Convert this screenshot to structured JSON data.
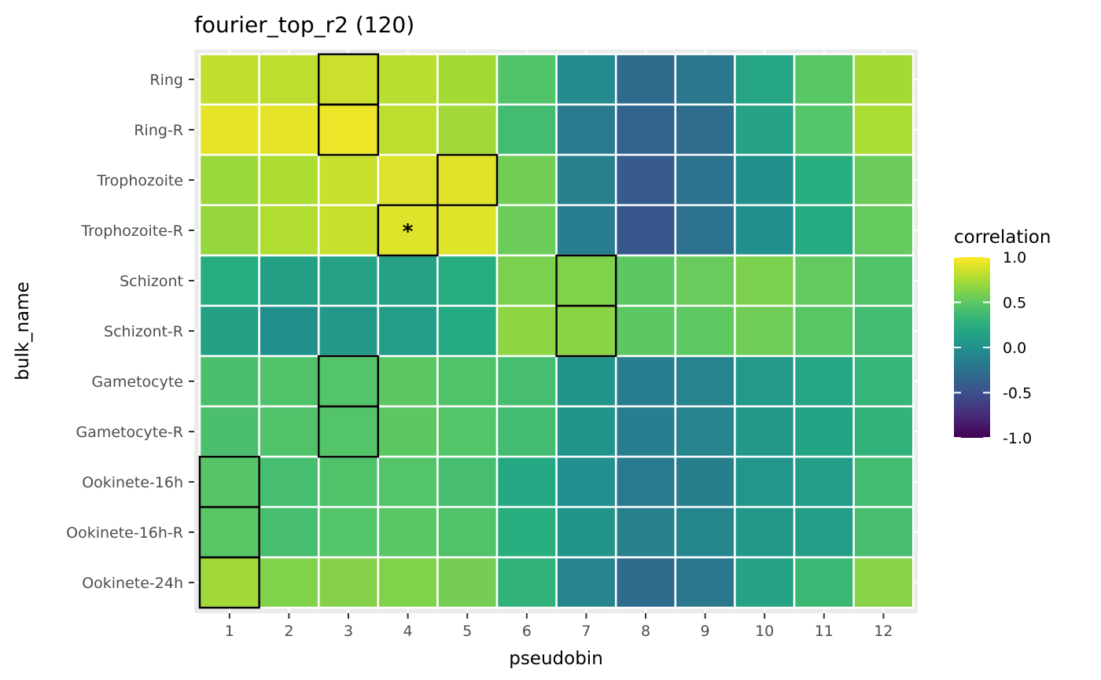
{
  "chart_data": {
    "type": "heatmap",
    "title": "fourier_top_r2 (120)",
    "xlabel": "pseudobin",
    "ylabel": "bulk_name",
    "x": [
      "1",
      "2",
      "3",
      "4",
      "5",
      "6",
      "7",
      "8",
      "9",
      "10",
      "11",
      "12"
    ],
    "y": [
      "Ring",
      "Ring-R",
      "Trophozoite",
      "Trophozoite-R",
      "Schizont",
      "Schizont-R",
      "Gametocyte",
      "Gametocyte-R",
      "Ookinete-16h",
      "Ookinete-16h-R",
      "Ookinete-24h"
    ],
    "values": [
      [
        0.82,
        0.8,
        0.85,
        0.79,
        0.73,
        0.45,
        -0.05,
        -0.3,
        -0.2,
        0.18,
        0.48,
        0.73
      ],
      [
        0.93,
        0.93,
        0.95,
        0.8,
        0.72,
        0.38,
        -0.18,
        -0.35,
        -0.28,
        0.15,
        0.46,
        0.75
      ],
      [
        0.7,
        0.76,
        0.84,
        0.9,
        0.92,
        0.57,
        -0.12,
        -0.42,
        -0.25,
        0.0,
        0.26,
        0.55
      ],
      [
        0.69,
        0.77,
        0.84,
        0.91,
        0.91,
        0.55,
        -0.15,
        -0.45,
        -0.25,
        0.0,
        0.22,
        0.53
      ],
      [
        0.24,
        0.14,
        0.15,
        0.15,
        0.24,
        0.6,
        0.62,
        0.5,
        0.54,
        0.6,
        0.52,
        0.44
      ],
      [
        0.14,
        0.0,
        0.07,
        0.1,
        0.22,
        0.66,
        0.65,
        0.5,
        0.51,
        0.56,
        0.48,
        0.38
      ],
      [
        0.42,
        0.44,
        0.46,
        0.5,
        0.44,
        0.4,
        0.04,
        -0.15,
        -0.1,
        0.08,
        0.18,
        0.32
      ],
      [
        0.42,
        0.44,
        0.46,
        0.5,
        0.46,
        0.38,
        0.04,
        -0.15,
        -0.1,
        0.06,
        0.16,
        0.3
      ],
      [
        0.47,
        0.4,
        0.44,
        0.46,
        0.4,
        0.2,
        -0.02,
        -0.18,
        -0.14,
        0.05,
        0.1,
        0.38
      ],
      [
        0.48,
        0.4,
        0.46,
        0.48,
        0.44,
        0.26,
        0.04,
        -0.12,
        -0.08,
        0.06,
        0.12,
        0.4
      ],
      [
        0.72,
        0.62,
        0.63,
        0.62,
        0.58,
        0.3,
        -0.1,
        -0.3,
        -0.2,
        0.15,
        0.35,
        0.64
      ]
    ],
    "highlighted": [
      [
        0,
        3
      ],
      [
        1,
        3
      ],
      [
        2,
        5
      ],
      [
        3,
        4
      ],
      [
        4,
        7
      ],
      [
        5,
        7
      ],
      [
        6,
        3
      ],
      [
        7,
        3
      ],
      [
        8,
        1
      ],
      [
        9,
        1
      ],
      [
        10,
        1
      ]
    ],
    "annotations": [
      {
        "row": 3,
        "col": 4,
        "text": "*"
      }
    ],
    "legend": {
      "title": "correlation",
      "min": -1.0,
      "max": 1.0,
      "ticks": [
        "1.0",
        "0.5",
        "0.0",
        "-0.5",
        "-1.0"
      ],
      "placement": "right"
    },
    "colormap": "viridis",
    "panel_background": "#ebebeb"
  }
}
